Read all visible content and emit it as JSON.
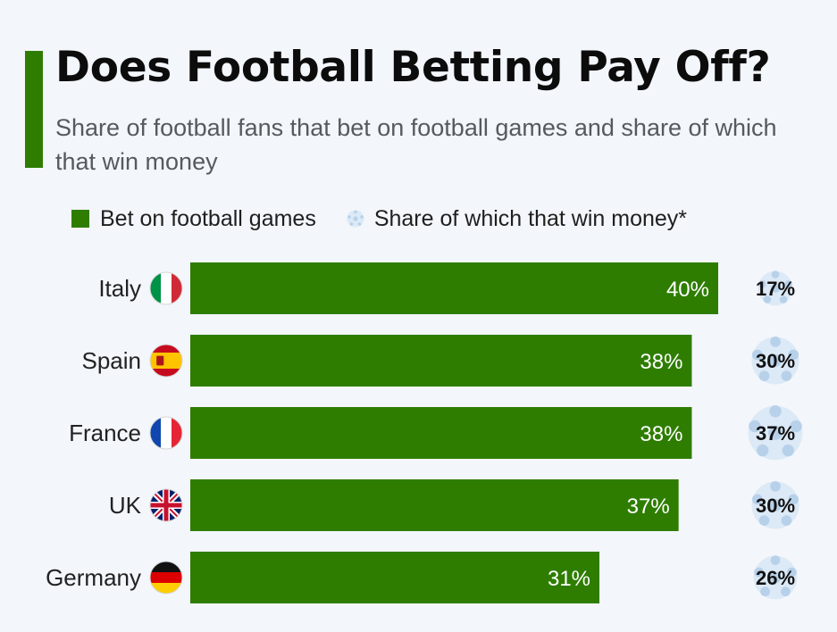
{
  "header": {
    "title": "Does Football Betting Pay Off?",
    "subtitle": "Share of football fans that bet on football games and share of which that win money"
  },
  "legend": {
    "bet_label": "Bet on football games",
    "win_label": "Share of which that win money*"
  },
  "colors": {
    "bar": "#2e7d00",
    "accent": "#2e7d00",
    "ball": "#dce9f6",
    "ball_dots": "#b8d1ea",
    "background": "#f3f6fa"
  },
  "chart_data": {
    "type": "bar",
    "orientation": "horizontal",
    "categories": [
      "Italy",
      "Spain",
      "France",
      "UK",
      "Germany"
    ],
    "series": [
      {
        "name": "Bet on football games",
        "values": [
          40,
          38,
          38,
          37,
          31
        ],
        "unit": "%"
      },
      {
        "name": "Share of which that win money*",
        "values": [
          17,
          30,
          37,
          30,
          26
        ],
        "unit": "%"
      }
    ],
    "xlim": [
      0,
      40
    ],
    "grid": false,
    "legend_position": "top",
    "flags": [
      "italy-flag-icon",
      "spain-flag-icon",
      "france-flag-icon",
      "uk-flag-icon",
      "germany-flag-icon"
    ]
  }
}
